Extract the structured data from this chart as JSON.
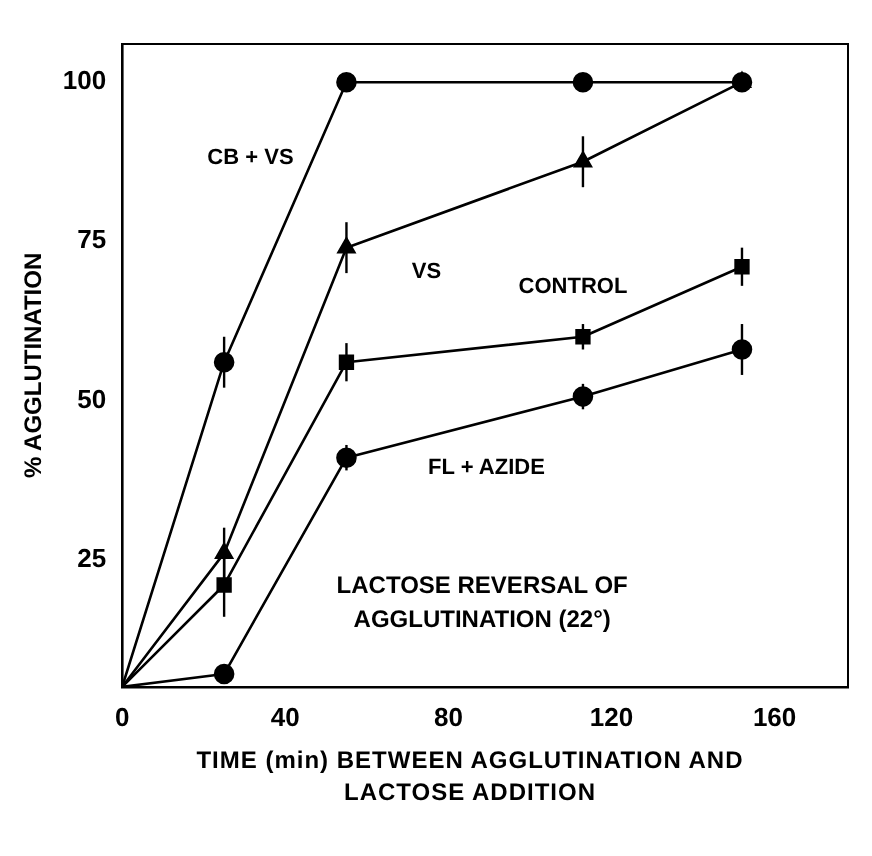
{
  "chart_data": {
    "type": "line",
    "xlabel": "TIME (min) BETWEEN AGGLUTINATION AND LACTOSE ADDITION",
    "ylabel": "% AGGLUTINATION",
    "x": [
      0,
      25,
      55,
      113,
      152
    ],
    "xlim": [
      0,
      178
    ],
    "xticks": [
      0,
      40,
      80,
      120,
      160
    ],
    "ylim": [
      5,
      106
    ],
    "yticks": [
      25,
      50,
      75,
      100
    ],
    "grid": false,
    "legend": false,
    "line_style": "solid",
    "series": [
      {
        "name": "CB + VS",
        "color": "#000000",
        "marker": "circle",
        "values": [
          5,
          56,
          100,
          100,
          100
        ],
        "errors": [
          null,
          4,
          null,
          null,
          null
        ]
      },
      {
        "name": "VS",
        "color": "#000000",
        "marker": "triangle",
        "values": [
          5,
          26,
          74,
          87.5,
          100
        ],
        "errors": [
          null,
          4,
          4,
          4,
          null
        ]
      },
      {
        "name": "CONTROL",
        "color": "#000000",
        "marker": "square",
        "values": [
          5,
          21,
          56,
          60,
          71
        ],
        "errors": [
          null,
          5,
          3,
          2,
          3
        ]
      },
      {
        "name": "FL + AZIDE",
        "color": "#000000",
        "marker": "circle",
        "values": [
          5,
          7,
          41,
          50.6,
          58
        ],
        "errors": [
          null,
          null,
          2,
          2,
          4
        ]
      }
    ],
    "annotations": [
      "LACTOSE REVERSAL OF AGGLUTINATION (22°)"
    ]
  }
}
